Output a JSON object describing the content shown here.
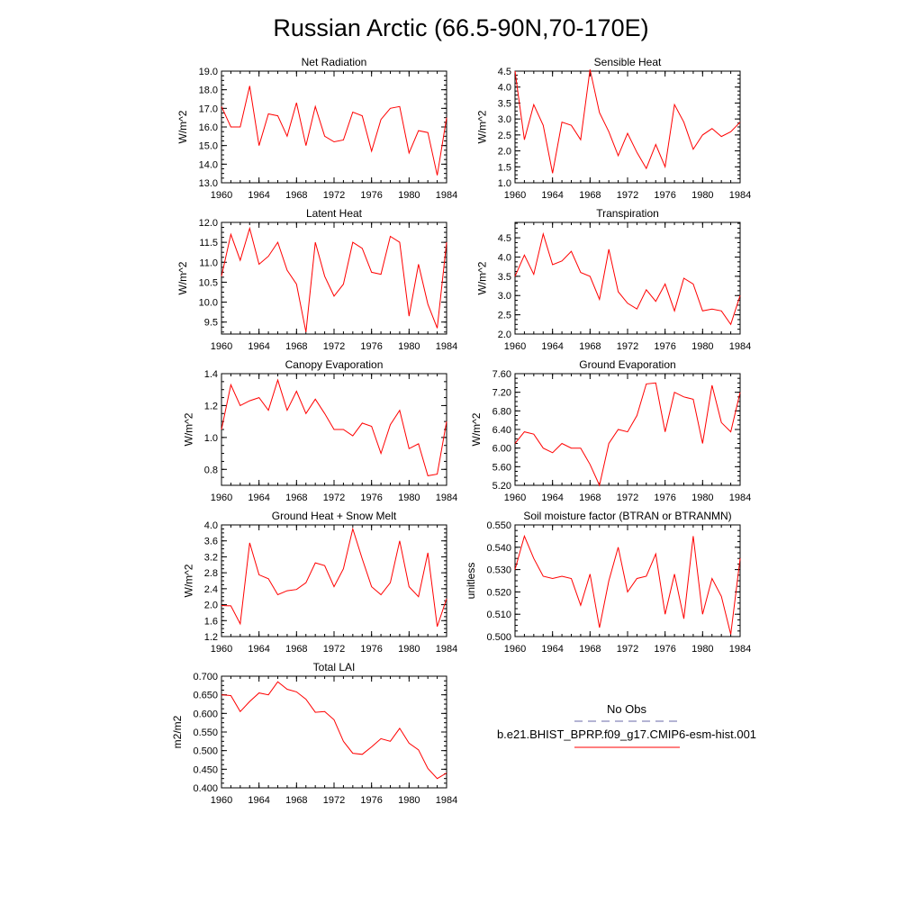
{
  "figure": {
    "title": "Russian Arctic (66.5-90N,70-170E)",
    "legend": {
      "obs_label": "No Obs",
      "model_label": "b.e21.BHIST_BPRP.f09_g17.CMIP6-esm-hist.001",
      "obs_color": "#6a6aaa",
      "model_color": "#ff0000"
    }
  },
  "chart_data": [
    {
      "type": "line",
      "title": "Net Radiation",
      "ylabel": "W/m^2",
      "ylim": [
        13.0,
        19.0
      ],
      "yticks": [
        "13.0",
        "14.0",
        "15.0",
        "16.0",
        "17.0",
        "18.0",
        "19.0"
      ],
      "xlim": [
        1960,
        1984
      ],
      "xticks": [
        "1960",
        "1964",
        "1968",
        "1972",
        "1976",
        "1980",
        "1984"
      ],
      "x": [
        1960,
        1961,
        1962,
        1963,
        1964,
        1965,
        1966,
        1967,
        1968,
        1969,
        1970,
        1971,
        1972,
        1973,
        1974,
        1975,
        1976,
        1977,
        1978,
        1979,
        1980,
        1981,
        1982,
        1983,
        1984
      ],
      "values": [
        17.1,
        16.0,
        16.0,
        18.2,
        15.0,
        16.7,
        16.6,
        15.5,
        17.3,
        15.0,
        17.1,
        15.5,
        15.2,
        15.3,
        16.8,
        16.6,
        14.7,
        16.4,
        17.0,
        17.1,
        14.6,
        15.8,
        15.7,
        13.4,
        16.5
      ],
      "color": "#ff0000"
    },
    {
      "type": "line",
      "title": "Sensible Heat",
      "ylabel": "W/m^2",
      "ylim": [
        1.0,
        4.5
      ],
      "yticks": [
        "1.0",
        "1.5",
        "2.0",
        "2.5",
        "3.0",
        "3.5",
        "4.0",
        "4.5"
      ],
      "xlim": [
        1960,
        1984
      ],
      "xticks": [
        "1960",
        "1964",
        "1968",
        "1972",
        "1976",
        "1980",
        "1984"
      ],
      "x": [
        1960,
        1961,
        1962,
        1963,
        1964,
        1965,
        1966,
        1967,
        1968,
        1969,
        1970,
        1971,
        1972,
        1973,
        1974,
        1975,
        1976,
        1977,
        1978,
        1979,
        1980,
        1981,
        1982,
        1983,
        1984
      ],
      "values": [
        4.5,
        2.35,
        3.45,
        2.8,
        1.3,
        2.9,
        2.8,
        2.35,
        4.55,
        3.2,
        2.6,
        1.85,
        2.55,
        1.95,
        1.45,
        2.2,
        1.5,
        3.45,
        2.9,
        2.05,
        2.5,
        2.7,
        2.45,
        2.6,
        2.9
      ],
      "color": "#ff0000"
    },
    {
      "type": "line",
      "title": "Latent Heat",
      "ylabel": "W/m^2",
      "ylim": [
        9.2,
        12.0
      ],
      "yticks": [
        "9.5",
        "10.0",
        "10.5",
        "11.0",
        "11.5",
        "12.0"
      ],
      "xlim": [
        1960,
        1984
      ],
      "xticks": [
        "1960",
        "1964",
        "1968",
        "1972",
        "1976",
        "1980",
        "1984"
      ],
      "x": [
        1960,
        1961,
        1962,
        1963,
        1964,
        1965,
        1966,
        1967,
        1968,
        1969,
        1970,
        1971,
        1972,
        1973,
        1974,
        1975,
        1976,
        1977,
        1978,
        1979,
        1980,
        1981,
        1982,
        1983,
        1984
      ],
      "values": [
        10.65,
        11.7,
        11.05,
        11.85,
        10.95,
        11.15,
        11.5,
        10.8,
        10.45,
        9.25,
        11.5,
        10.65,
        10.15,
        10.45,
        11.5,
        11.35,
        10.75,
        10.7,
        11.65,
        11.5,
        9.65,
        10.95,
        9.95,
        9.35,
        11.5
      ],
      "color": "#ff0000"
    },
    {
      "type": "line",
      "title": "Transpiration",
      "ylabel": "W/m^2",
      "ylim": [
        2.0,
        4.9
      ],
      "yticks": [
        "2.0",
        "2.5",
        "3.0",
        "3.5",
        "4.0",
        "4.5"
      ],
      "xlim": [
        1960,
        1984
      ],
      "xticks": [
        "1960",
        "1964",
        "1968",
        "1972",
        "1976",
        "1980",
        "1984"
      ],
      "x": [
        1960,
        1961,
        1962,
        1963,
        1964,
        1965,
        1966,
        1967,
        1968,
        1969,
        1970,
        1971,
        1972,
        1973,
        1974,
        1975,
        1976,
        1977,
        1978,
        1979,
        1980,
        1981,
        1982,
        1983,
        1984
      ],
      "values": [
        3.5,
        4.05,
        3.55,
        4.6,
        3.8,
        3.9,
        4.15,
        3.6,
        3.5,
        2.9,
        4.2,
        3.1,
        2.8,
        2.65,
        3.15,
        2.85,
        3.3,
        2.6,
        3.45,
        3.3,
        2.6,
        2.65,
        2.6,
        2.25,
        3.0
      ],
      "color": "#ff0000"
    },
    {
      "type": "line",
      "title": "Canopy Evaporation",
      "ylabel": "W/m^2",
      "ylim": [
        0.7,
        1.4
      ],
      "yticks": [
        "0.8",
        "1.0",
        "1.2",
        "1.4"
      ],
      "xlim": [
        1960,
        1984
      ],
      "xticks": [
        "1960",
        "1964",
        "1968",
        "1972",
        "1976",
        "1980",
        "1984"
      ],
      "x": [
        1960,
        1961,
        1962,
        1963,
        1964,
        1965,
        1966,
        1967,
        1968,
        1969,
        1970,
        1971,
        1972,
        1973,
        1974,
        1975,
        1976,
        1977,
        1978,
        1979,
        1980,
        1981,
        1982,
        1983,
        1984
      ],
      "values": [
        1.05,
        1.33,
        1.2,
        1.23,
        1.25,
        1.17,
        1.36,
        1.17,
        1.29,
        1.15,
        1.24,
        1.15,
        1.05,
        1.05,
        1.01,
        1.09,
        1.07,
        0.9,
        1.08,
        1.17,
        0.93,
        0.96,
        0.76,
        0.77,
        1.1
      ],
      "color": "#ff0000"
    },
    {
      "type": "line",
      "title": "Ground Evaporation",
      "ylabel": "W/m^2",
      "ylim": [
        5.2,
        7.6
      ],
      "yticks": [
        "5.20",
        "5.60",
        "6.00",
        "6.40",
        "6.80",
        "7.20",
        "7.60"
      ],
      "xlim": [
        1960,
        1984
      ],
      "xticks": [
        "1960",
        "1964",
        "1968",
        "1972",
        "1976",
        "1980",
        "1984"
      ],
      "x": [
        1960,
        1961,
        1962,
        1963,
        1964,
        1965,
        1966,
        1967,
        1968,
        1969,
        1970,
        1971,
        1972,
        1973,
        1974,
        1975,
        1976,
        1977,
        1978,
        1979,
        1980,
        1981,
        1982,
        1983,
        1984
      ],
      "values": [
        6.1,
        6.35,
        6.3,
        6.0,
        5.9,
        6.1,
        6.0,
        6.0,
        5.65,
        5.2,
        6.1,
        6.4,
        6.35,
        6.7,
        7.38,
        7.4,
        6.35,
        7.2,
        7.1,
        7.05,
        6.1,
        7.35,
        6.55,
        6.35,
        7.2
      ],
      "color": "#ff0000"
    },
    {
      "type": "line",
      "title": "Ground Heat + Snow Melt",
      "ylabel": "W/m^2",
      "ylim": [
        1.2,
        4.0
      ],
      "yticks": [
        "1.2",
        "1.6",
        "2.0",
        "2.4",
        "2.8",
        "3.2",
        "3.6",
        "4.0"
      ],
      "xlim": [
        1960,
        1984
      ],
      "xticks": [
        "1960",
        "1964",
        "1968",
        "1972",
        "1976",
        "1980",
        "1984"
      ],
      "x": [
        1960,
        1961,
        1962,
        1963,
        1964,
        1965,
        1966,
        1967,
        1968,
        1969,
        1970,
        1971,
        1972,
        1973,
        1974,
        1975,
        1976,
        1977,
        1978,
        1979,
        1980,
        1981,
        1982,
        1983,
        1984
      ],
      "values": [
        1.98,
        1.97,
        1.52,
        3.55,
        2.75,
        2.65,
        2.25,
        2.35,
        2.38,
        2.55,
        3.05,
        2.98,
        2.45,
        2.9,
        3.9,
        3.15,
        2.45,
        2.25,
        2.55,
        3.6,
        2.45,
        2.2,
        3.3,
        1.45,
        2.15
      ],
      "color": "#ff0000"
    },
    {
      "type": "line",
      "title": "Soil moisture factor (BTRAN or BTRANMN)",
      "ylabel": "unitless",
      "ylim": [
        0.5,
        0.55
      ],
      "yticks": [
        "0.500",
        "0.510",
        "0.520",
        "0.530",
        "0.540",
        "0.550"
      ],
      "xlim": [
        1960,
        1984
      ],
      "xticks": [
        "1960",
        "1964",
        "1968",
        "1972",
        "1976",
        "1980",
        "1984"
      ],
      "x": [
        1960,
        1961,
        1962,
        1963,
        1964,
        1965,
        1966,
        1967,
        1968,
        1969,
        1970,
        1971,
        1972,
        1973,
        1974,
        1975,
        1976,
        1977,
        1978,
        1979,
        1980,
        1981,
        1982,
        1983,
        1984
      ],
      "values": [
        0.53,
        0.545,
        0.535,
        0.527,
        0.526,
        0.527,
        0.526,
        0.514,
        0.528,
        0.504,
        0.525,
        0.54,
        0.52,
        0.526,
        0.527,
        0.537,
        0.51,
        0.528,
        0.508,
        0.545,
        0.51,
        0.526,
        0.518,
        0.501,
        0.535
      ],
      "color": "#ff0000"
    },
    {
      "type": "line",
      "title": "Total LAI",
      "ylabel": "m2/m2",
      "ylim": [
        0.4,
        0.7
      ],
      "yticks": [
        "0.400",
        "0.450",
        "0.500",
        "0.550",
        "0.600",
        "0.650",
        "0.700"
      ],
      "xlim": [
        1960,
        1984
      ],
      "xticks": [
        "1960",
        "1964",
        "1968",
        "1972",
        "1976",
        "1980",
        "1984"
      ],
      "x": [
        1960,
        1961,
        1962,
        1963,
        1964,
        1965,
        1966,
        1967,
        1968,
        1969,
        1970,
        1971,
        1972,
        1973,
        1974,
        1975,
        1976,
        1977,
        1978,
        1979,
        1980,
        1981,
        1982,
        1983,
        1984
      ],
      "values": [
        0.65,
        0.648,
        0.605,
        0.632,
        0.655,
        0.65,
        0.685,
        0.665,
        0.658,
        0.638,
        0.603,
        0.605,
        0.583,
        0.525,
        0.493,
        0.49,
        0.51,
        0.532,
        0.525,
        0.56,
        0.52,
        0.502,
        0.452,
        0.425,
        0.44
      ],
      "color": "#ff0000"
    }
  ]
}
